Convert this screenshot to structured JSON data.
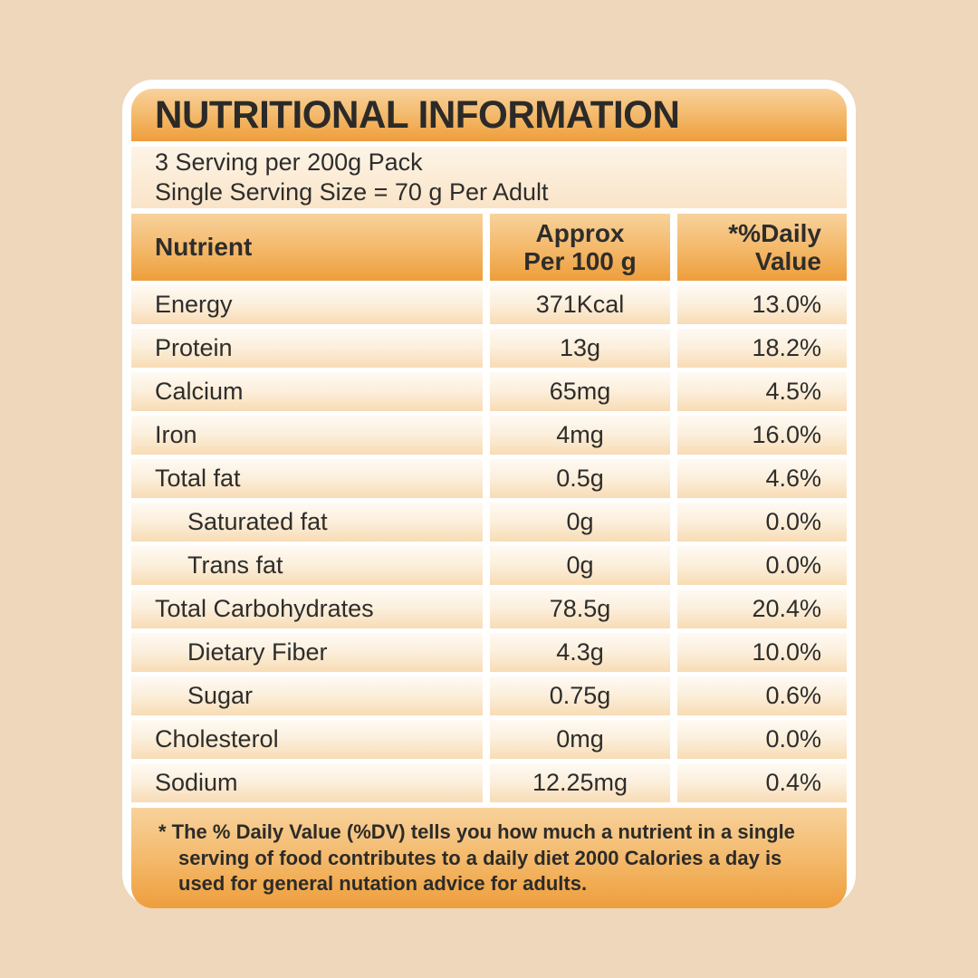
{
  "title": "NUTRITIONAL INFORMATION",
  "serving_info": {
    "line1": "3 Serving per 200g Pack",
    "line2": "Single Serving Size = 70 g Per Adult"
  },
  "table": {
    "headers": {
      "nutrient": "Nutrient",
      "approx_line1": "Approx",
      "approx_line2": "Per 100 g",
      "daily_line1": "*%Daily",
      "daily_line2": "Value"
    },
    "rows": [
      {
        "nutrient": "Energy",
        "amount": "371Kcal",
        "daily_value": "13.0%",
        "indent": false
      },
      {
        "nutrient": "Protein",
        "amount": "13g",
        "daily_value": "18.2%",
        "indent": false
      },
      {
        "nutrient": "Calcium",
        "amount": "65mg",
        "daily_value": "4.5%",
        "indent": false
      },
      {
        "nutrient": "Iron",
        "amount": "4mg",
        "daily_value": "16.0%",
        "indent": false
      },
      {
        "nutrient": "Total fat",
        "amount": "0.5g",
        "daily_value": "4.6%",
        "indent": false
      },
      {
        "nutrient": "Saturated fat",
        "amount": "0g",
        "daily_value": "0.0%",
        "indent": true
      },
      {
        "nutrient": "Trans fat",
        "amount": "0g",
        "daily_value": "0.0%",
        "indent": true
      },
      {
        "nutrient": "Total Carbohydrates",
        "amount": "78.5g",
        "daily_value": "20.4%",
        "indent": false
      },
      {
        "nutrient": "Dietary Fiber",
        "amount": "4.3g",
        "daily_value": "10.0%",
        "indent": true
      },
      {
        "nutrient": "Sugar",
        "amount": "0.75g",
        "daily_value": "0.6%",
        "indent": true
      },
      {
        "nutrient": "Cholesterol",
        "amount": "0mg",
        "daily_value": "0.0%",
        "indent": false
      },
      {
        "nutrient": "Sodium",
        "amount": "12.25mg",
        "daily_value": "0.4%",
        "indent": false
      }
    ]
  },
  "footnote": "* The % Daily Value (%DV) tells you how much a nutrient in a single serving of food contributes to a daily diet 2000 Calories a day is used for general nutation advice for adults.",
  "colors": {
    "page_background": "#eed7ba",
    "card_background": "#ffffff",
    "accent_orange_top": "#f8d29c",
    "accent_orange_bottom": "#ee9e3c",
    "row_top": "#fefaf3",
    "row_bottom": "#f8dcb5",
    "text": "#2e2d2b"
  }
}
